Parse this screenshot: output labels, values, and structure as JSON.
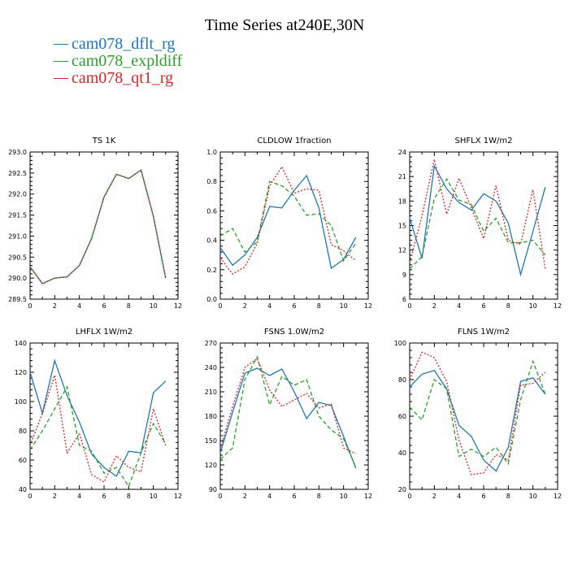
{
  "title": "Time Series at240E,30N",
  "legend": [
    {
      "label": "cam078_dflt_rg",
      "color": "#1f77b4",
      "dash": "solid"
    },
    {
      "label": "cam078_expldiff",
      "color": "#2ca02c",
      "dash": "dashed"
    },
    {
      "label": "cam078_qt1_rg",
      "color": "#d62728",
      "dash": "dotted"
    }
  ],
  "chart_data": [
    {
      "type": "line",
      "title": "TS   1K",
      "xlim": [
        0,
        12
      ],
      "xticks": [
        0,
        2,
        4,
        6,
        8,
        10,
        12
      ],
      "ylim": [
        289.5,
        293.0
      ],
      "yticks": [
        "289.5",
        "290.0",
        "290.5",
        "291.0",
        "291.5",
        "292.0",
        "292.5",
        "293.0"
      ],
      "x": [
        0,
        1,
        2,
        3,
        4,
        5,
        6,
        7,
        8,
        9,
        10,
        11
      ],
      "series": [
        {
          "name": "cam078_dflt_rg",
          "values": [
            290.27,
            289.87,
            290.0,
            290.03,
            290.3,
            290.95,
            291.93,
            292.47,
            292.37,
            292.57,
            291.47,
            290.0
          ]
        },
        {
          "name": "cam078_expldiff",
          "values": [
            290.27,
            289.87,
            290.0,
            290.03,
            290.3,
            290.95,
            291.93,
            292.47,
            292.37,
            292.57,
            291.47,
            290.0
          ]
        },
        {
          "name": "cam078_qt1_rg",
          "values": [
            290.27,
            289.87,
            290.0,
            290.03,
            290.3,
            290.95,
            291.93,
            292.47,
            292.37,
            292.57,
            291.47,
            290.0
          ]
        }
      ]
    },
    {
      "type": "line",
      "title": "CLDLOW   1fraction",
      "xlim": [
        0,
        12
      ],
      "xticks": [
        0,
        2,
        4,
        6,
        8,
        10,
        12
      ],
      "ylim": [
        0.0,
        1.0
      ],
      "yticks": [
        "0.0",
        "0.2",
        "0.4",
        "0.6",
        "0.8",
        "1.0"
      ],
      "x": [
        0,
        1,
        2,
        3,
        4,
        5,
        6,
        7,
        8,
        9,
        10,
        11
      ],
      "series": [
        {
          "name": "cam078_dflt_rg",
          "values": [
            0.35,
            0.23,
            0.3,
            0.42,
            0.63,
            0.62,
            0.74,
            0.84,
            0.62,
            0.21,
            0.27,
            0.42
          ]
        },
        {
          "name": "cam078_expldiff",
          "values": [
            0.43,
            0.48,
            0.32,
            0.39,
            0.8,
            0.77,
            0.7,
            0.57,
            0.58,
            0.5,
            0.26,
            0.38
          ]
        },
        {
          "name": "cam078_qt1_rg",
          "values": [
            0.28,
            0.17,
            0.22,
            0.38,
            0.77,
            0.9,
            0.72,
            0.75,
            0.74,
            0.37,
            0.33,
            0.26
          ]
        }
      ]
    },
    {
      "type": "line",
      "title": "SHFLX   1W/m2",
      "xlim": [
        0,
        12
      ],
      "xticks": [
        0,
        2,
        4,
        6,
        8,
        10,
        12
      ],
      "ylim": [
        6,
        24
      ],
      "yticks": [
        "6",
        "9",
        "12",
        "15",
        "18",
        "21",
        "24"
      ],
      "x": [
        0,
        1,
        2,
        3,
        4,
        5,
        6,
        7,
        8,
        9,
        10,
        11
      ],
      "series": [
        {
          "name": "cam078_dflt_rg",
          "values": [
            15.9,
            11.0,
            22.3,
            19.5,
            17.8,
            16.9,
            18.9,
            18.0,
            15.3,
            9.0,
            14.3,
            19.7
          ]
        },
        {
          "name": "cam078_expldiff",
          "values": [
            9.7,
            11.2,
            18.3,
            20.7,
            18.1,
            17.6,
            14.3,
            15.9,
            12.9,
            12.9,
            13.2,
            11.4
          ]
        },
        {
          "name": "cam078_qt1_rg",
          "values": [
            10.5,
            16.2,
            23.1,
            16.4,
            20.8,
            17.2,
            13.4,
            19.9,
            13.2,
            12.7,
            19.4,
            9.7
          ]
        }
      ]
    },
    {
      "type": "line",
      "title": "LHFLX   1W/m2",
      "xlim": [
        0,
        12
      ],
      "xticks": [
        0,
        2,
        4,
        6,
        8,
        10,
        12
      ],
      "ylim": [
        40,
        140
      ],
      "yticks": [
        "40",
        "60",
        "80",
        "100",
        "120",
        "140"
      ],
      "x": [
        0,
        1,
        2,
        3,
        4,
        5,
        6,
        7,
        8,
        9,
        10,
        11
      ],
      "series": [
        {
          "name": "cam078_dflt_rg",
          "values": [
            120,
            92,
            128,
            104,
            86,
            64,
            55,
            49,
            66,
            65,
            106,
            114
          ]
        },
        {
          "name": "cam078_expldiff",
          "values": [
            67,
            80,
            95,
            110,
            70,
            66,
            51,
            55,
            42,
            65,
            85,
            71
          ]
        },
        {
          "name": "cam078_qt1_rg",
          "values": [
            70,
            92,
            118,
            65,
            78,
            50,
            45,
            63,
            55,
            52,
            95,
            70
          ]
        }
      ]
    },
    {
      "type": "line",
      "title": "FSNS   1.0W/m2",
      "xlim": [
        0,
        12
      ],
      "xticks": [
        0,
        2,
        4,
        6,
        8,
        10,
        12
      ],
      "ylim": [
        90,
        270
      ],
      "yticks": [
        "90",
        "120",
        "150",
        "180",
        "210",
        "240",
        "270"
      ],
      "x": [
        0,
        1,
        2,
        3,
        4,
        5,
        6,
        7,
        8,
        9,
        10,
        11
      ],
      "series": [
        {
          "name": "cam078_dflt_rg",
          "values": [
            135,
            185,
            233,
            239,
            230,
            238,
            210,
            177,
            197,
            193,
            155,
            116
          ]
        },
        {
          "name": "cam078_expldiff",
          "values": [
            127,
            141,
            225,
            253,
            194,
            229,
            218,
            225,
            180,
            163,
            152,
            117
          ]
        },
        {
          "name": "cam078_qt1_rg",
          "values": [
            140,
            192,
            240,
            251,
            212,
            192,
            200,
            208,
            190,
            195,
            141,
            134
          ]
        }
      ]
    },
    {
      "type": "line",
      "title": "FLNS   1W/m2",
      "xlim": [
        0,
        12
      ],
      "xticks": [
        0,
        2,
        4,
        6,
        8,
        10,
        12
      ],
      "ylim": [
        20,
        100
      ],
      "yticks": [
        "20",
        "40",
        "60",
        "80",
        "100"
      ],
      "x": [
        0,
        1,
        2,
        3,
        4,
        5,
        6,
        7,
        8,
        9,
        10,
        11
      ],
      "series": [
        {
          "name": "cam078_dflt_rg",
          "values": [
            76,
            83,
            85,
            75,
            55,
            49,
            36,
            30,
            43,
            79,
            81,
            72
          ]
        },
        {
          "name": "cam078_expldiff",
          "values": [
            65,
            58,
            80,
            75,
            38,
            42,
            38,
            43,
            34,
            69,
            90,
            72
          ]
        },
        {
          "name": "cam078_qt1_rg",
          "values": [
            80,
            95,
            92,
            79,
            47,
            28,
            29,
            39,
            36,
            77,
            78,
            84
          ]
        }
      ]
    }
  ]
}
